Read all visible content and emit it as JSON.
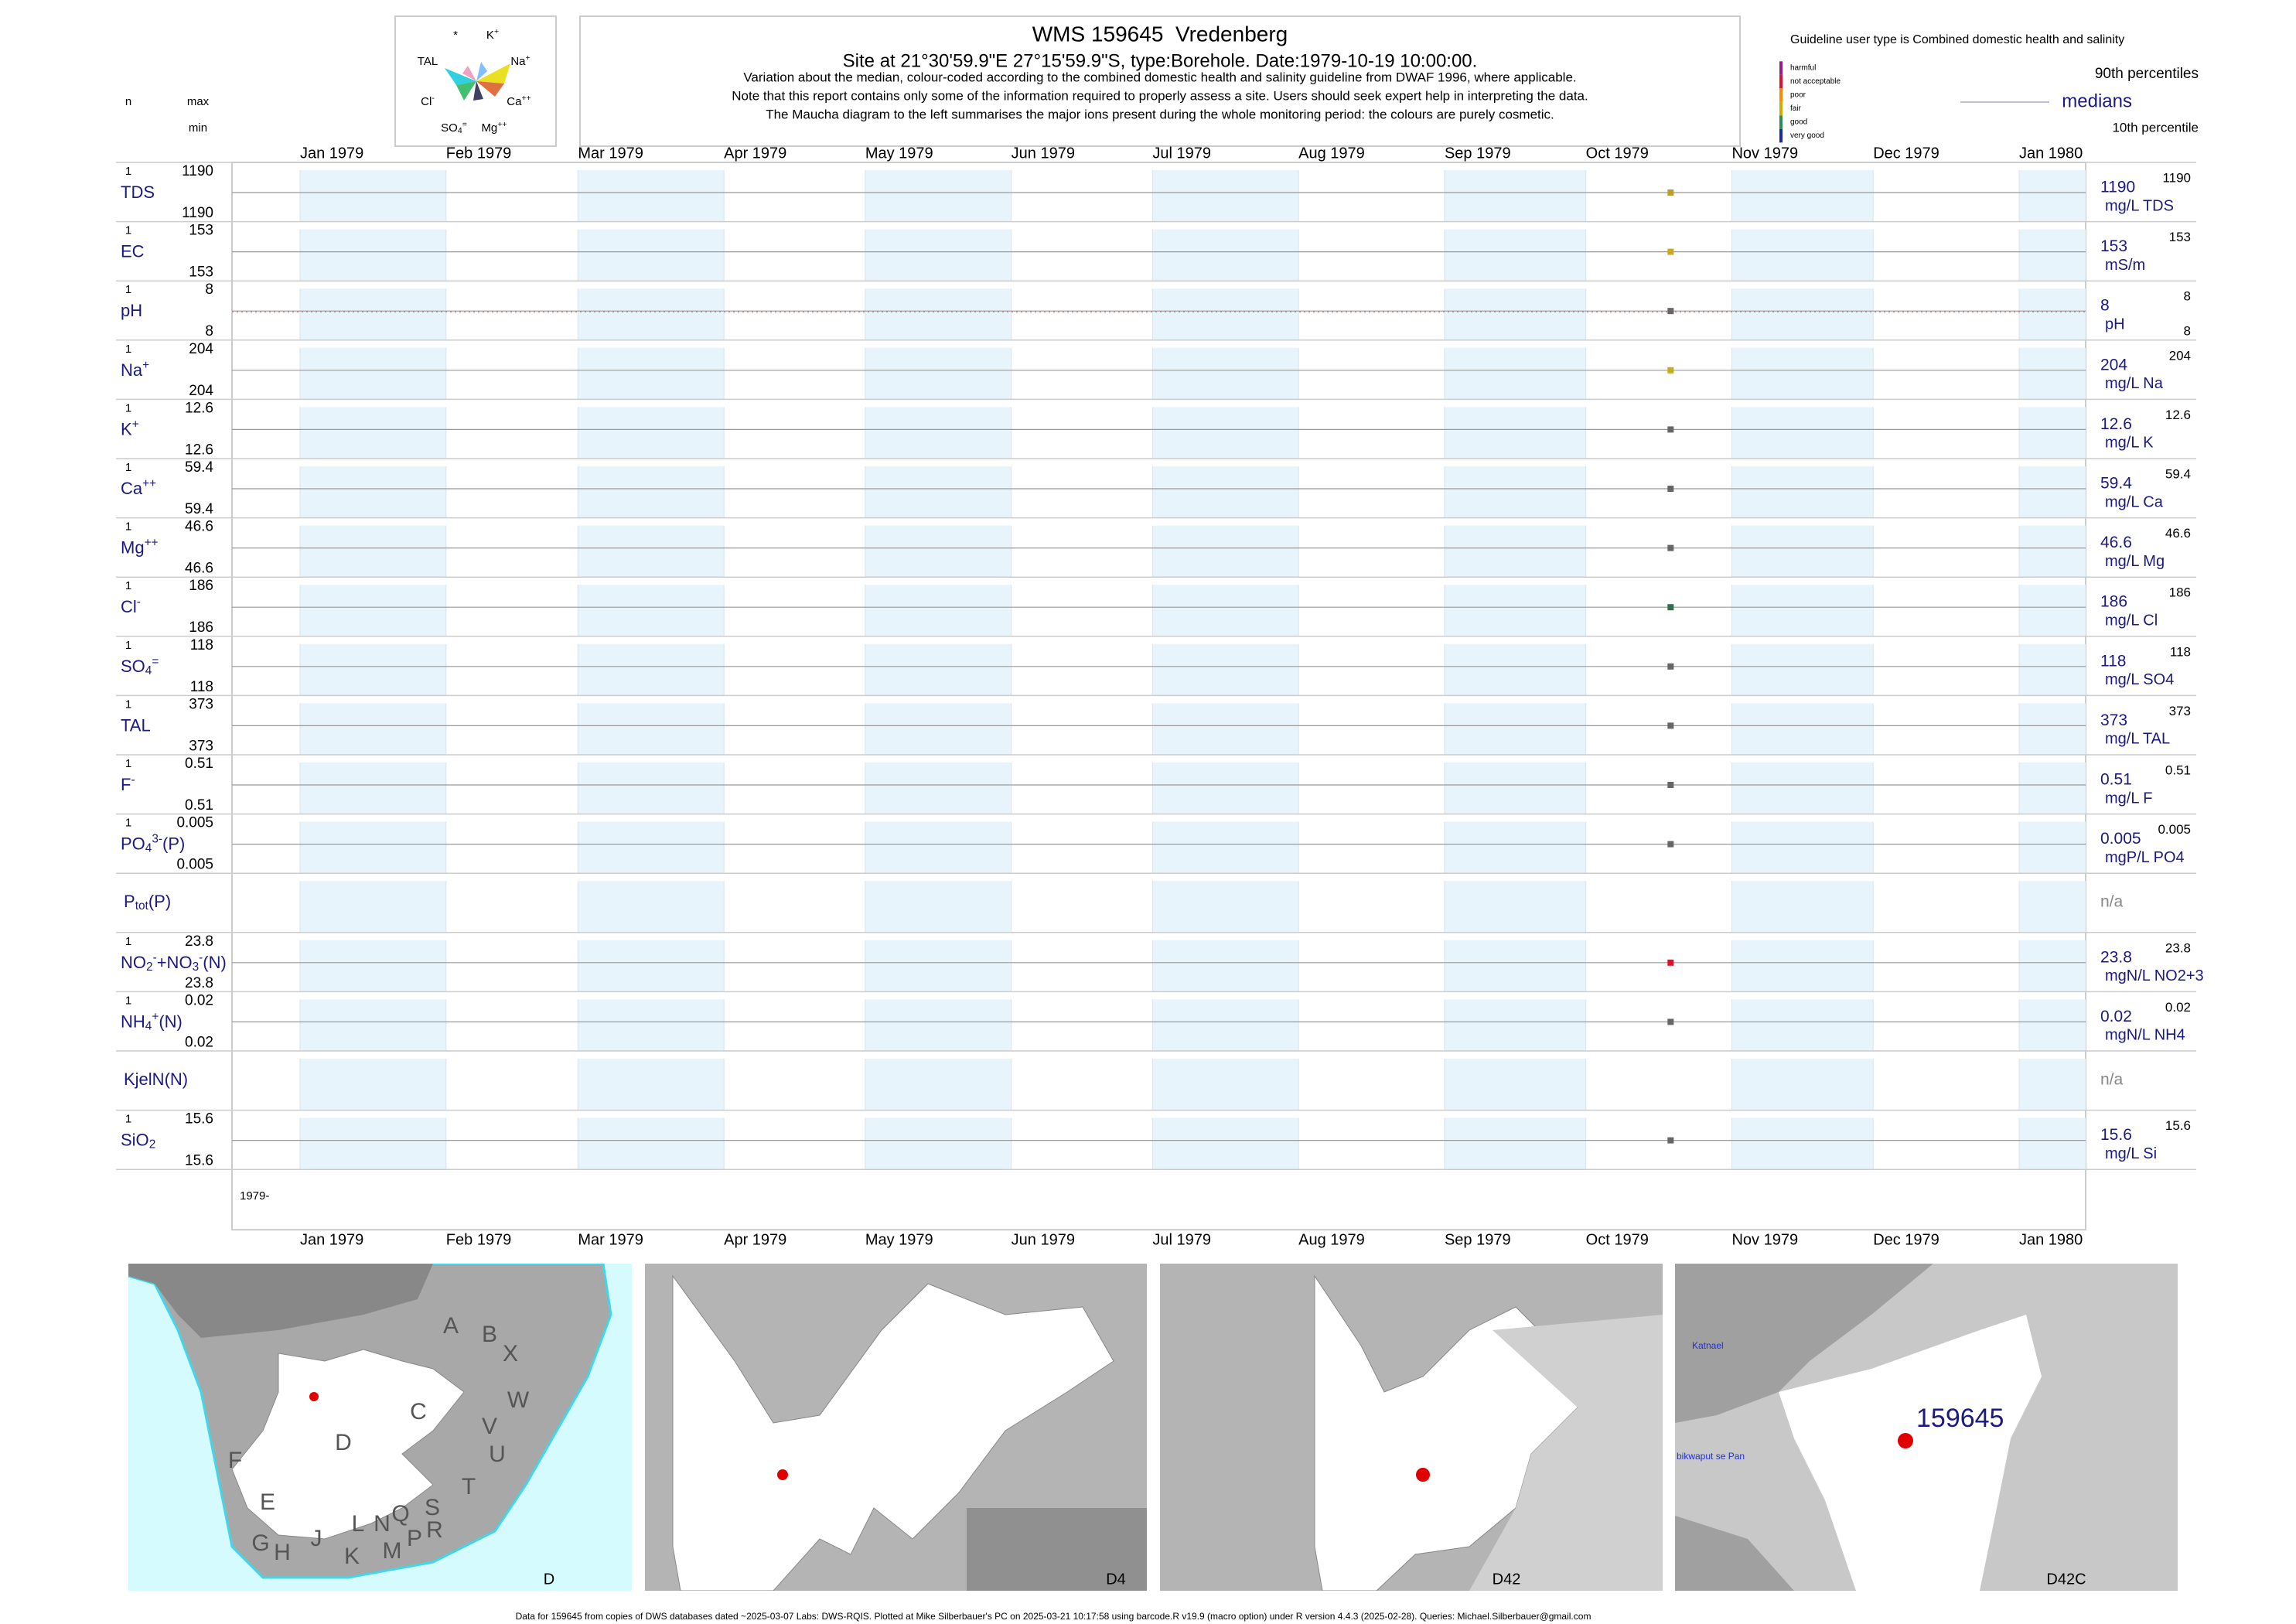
{
  "header": {
    "title": "WMS 159645  Vredenberg",
    "subtitle": "Site at 21°30'59.9\"E 27°15'59.9\"S, type:Borehole. Date:1979-10-19 10:00:00.",
    "notes": [
      "Variation about the median,  colour-coded according to the combined domestic health and salinity guideline from DWAF 1996, where applicable.",
      "Note that this report contains only some of the information required to properly assess a site. Users should seek expert help in interpreting the data.",
      "The Maucha diagram to the left summarises the major ions present during the whole monitoring period: the colours are purely cosmetic."
    ],
    "guideline": "Guideline user type is Combined domestic health and salinity"
  },
  "maucha": {
    "labels": [
      [
        {
          "text": "*"
        }
      ],
      [
        {
          "text": "K"
        },
        {
          "text": "+",
          "pos": "sup"
        }
      ],
      [
        {
          "text": "TAL"
        }
      ],
      [
        {
          "text": "Na"
        },
        {
          "text": "+",
          "pos": "sup"
        }
      ],
      [
        {
          "text": "Cl"
        },
        {
          "text": "-",
          "pos": "sup"
        }
      ],
      [
        {
          "text": "Ca"
        },
        {
          "text": "++",
          "pos": "sup"
        }
      ],
      [
        {
          "text": "SO"
        },
        {
          "text": "4",
          "pos": "sub"
        },
        {
          "text": "=",
          "pos": "sup"
        }
      ],
      [
        {
          "text": "Mg"
        },
        {
          "text": "++",
          "pos": "sup"
        }
      ]
    ]
  },
  "legend": {
    "classes": [
      {
        "name": "harmful",
        "color": "#9b1a8a"
      },
      {
        "name": "not acceptable",
        "color": "#e0102a"
      },
      {
        "name": "poor",
        "color": "#ff8a00"
      },
      {
        "name": "fair",
        "color": "#c9b000"
      },
      {
        "name": "good",
        "color": "#2e8b57"
      },
      {
        "name": "very good",
        "color": "#1a2aa0"
      }
    ],
    "p90": "90th percentiles",
    "median": "medians",
    "p10": "10th percentile",
    "n": "n",
    "max": "max",
    "min": "min"
  },
  "axis": {
    "months": [
      {
        "value": "1979-01",
        "label": "Jan 1979"
      },
      {
        "value": "1979-02",
        "label": "Feb 1979"
      },
      {
        "value": "1979-03",
        "label": "Mar 1979"
      },
      {
        "value": "1979-04",
        "label": "Apr 1979"
      },
      {
        "value": "1979-05",
        "label": "May 1979"
      },
      {
        "value": "1979-06",
        "label": "Jun 1979"
      },
      {
        "value": "1979-07",
        "label": "Jul 1979"
      },
      {
        "value": "1979-08",
        "label": "Aug 1979"
      },
      {
        "value": "1979-09",
        "label": "Sep 1979"
      },
      {
        "value": "1979-10",
        "label": "Oct 1979"
      },
      {
        "value": "1979-11",
        "label": "Nov 1979"
      },
      {
        "value": "1979-12",
        "label": "Dec 1979"
      },
      {
        "value": "1980-01",
        "label": "Jan 1980"
      }
    ],
    "start_label": "1979-"
  },
  "sample_date": "1979-10-19",
  "rows": [
    {
      "label": [
        {
          "text": "TDS"
        }
      ],
      "n": 1,
      "max": 1190,
      "min": 1190,
      "median": 1190,
      "unit": "mg/L TDS",
      "p90": 1190,
      "color": "#b8a030"
    },
    {
      "label": [
        {
          "text": "EC"
        }
      ],
      "n": 1,
      "max": 153,
      "min": 153,
      "median": 153,
      "unit": "mS/m",
      "p90": 153,
      "color": "#c8aa20"
    },
    {
      "label": [
        {
          "text": "pH"
        }
      ],
      "n": 1,
      "max": 8,
      "min": 8,
      "median": 8,
      "unit": "pH",
      "p90": 8,
      "p10": 8,
      "color": "#666666"
    },
    {
      "label": [
        {
          "text": "Na"
        },
        {
          "text": "+",
          "pos": "sup"
        }
      ],
      "n": 1,
      "max": 204,
      "min": 204,
      "median": 204,
      "unit": "mg/L Na",
      "p90": 204,
      "color": "#c8aa20"
    },
    {
      "label": [
        {
          "text": "K"
        },
        {
          "text": "+",
          "pos": "sup"
        }
      ],
      "n": 1,
      "max": 12.6,
      "min": 12.6,
      "median": 12.6,
      "unit": "mg/L K",
      "p90": 12.6,
      "color": "#666666"
    },
    {
      "label": [
        {
          "text": "Ca"
        },
        {
          "text": "++",
          "pos": "sup"
        }
      ],
      "n": 1,
      "max": 59.4,
      "min": 59.4,
      "median": 59.4,
      "unit": "mg/L Ca",
      "p90": 59.4,
      "color": "#666666"
    },
    {
      "label": [
        {
          "text": "Mg"
        },
        {
          "text": "++",
          "pos": "sup"
        }
      ],
      "n": 1,
      "max": 46.6,
      "min": 46.6,
      "median": 46.6,
      "unit": "mg/L Mg",
      "p90": 46.6,
      "color": "#666666"
    },
    {
      "label": [
        {
          "text": "Cl"
        },
        {
          "text": "-",
          "pos": "sup"
        }
      ],
      "n": 1,
      "max": 186,
      "min": 186,
      "median": 186,
      "unit": "mg/L Cl",
      "p90": 186,
      "color": "#2e6e4e"
    },
    {
      "label": [
        {
          "text": "SO"
        },
        {
          "text": "4",
          "pos": "sub"
        },
        {
          "text": "=",
          "pos": "sup"
        }
      ],
      "n": 1,
      "max": 118,
      "min": 118,
      "median": 118,
      "unit": "mg/L SO4",
      "p90": 118,
      "color": "#666666"
    },
    {
      "label": [
        {
          "text": "TAL"
        }
      ],
      "n": 1,
      "max": 373,
      "min": 373,
      "median": 373,
      "unit": "mg/L TAL",
      "p90": 373,
      "color": "#666666"
    },
    {
      "label": [
        {
          "text": "F"
        },
        {
          "text": "-",
          "pos": "sup"
        }
      ],
      "n": 1,
      "max": 0.51,
      "min": 0.51,
      "median": 0.51,
      "unit": "mg/L F",
      "p90": 0.51,
      "color": "#666666"
    },
    {
      "label": [
        {
          "text": "PO"
        },
        {
          "text": "4",
          "pos": "sub"
        },
        {
          "text": "3-",
          "pos": "sup"
        },
        {
          "text": "(P)"
        }
      ],
      "n": 1,
      "max": 0.005,
      "min": 0.005,
      "median": 0.005,
      "unit": "mgP/L PO4",
      "p90": 0.005,
      "color": "#666666"
    },
    {
      "label": [
        {
          "text": "P"
        },
        {
          "text": "tot",
          "pos": "sub"
        },
        {
          "text": "(P)"
        }
      ],
      "median_text": "n/a"
    },
    {
      "label": [
        {
          "text": "NO"
        },
        {
          "text": "2",
          "pos": "sub"
        },
        {
          "text": "-",
          "pos": "sup"
        },
        {
          "text": "+NO"
        },
        {
          "text": "3",
          "pos": "sub"
        },
        {
          "text": "-",
          "pos": "sup"
        },
        {
          "text": "(N)"
        }
      ],
      "n": 1,
      "max": 23.8,
      "min": 23.8,
      "median": 23.8,
      "unit": "mgN/L NO2+3",
      "p90": 23.8,
      "color": "#e0102a"
    },
    {
      "label": [
        {
          "text": "NH"
        },
        {
          "text": "4",
          "pos": "sub"
        },
        {
          "text": "+",
          "pos": "sup"
        },
        {
          "text": "(N)"
        }
      ],
      "n": 1,
      "max": 0.02,
      "min": 0.02,
      "median": 0.02,
      "unit": "mgN/L NH4",
      "p90": 0.02,
      "color": "#666666"
    },
    {
      "label": [
        {
          "text": "KjelN(N)"
        }
      ],
      "median_text": "n/a"
    },
    {
      "label": [
        {
          "text": "SiO"
        },
        {
          "text": "2",
          "pos": "sub"
        }
      ],
      "n": 1,
      "max": 15.6,
      "min": 15.6,
      "median": 15.6,
      "unit": "mg/L Si",
      "p90": 15.6,
      "color": "#666666"
    }
  ],
  "maps": [
    {
      "label": "D",
      "regions": [
        "A",
        "B",
        "X",
        "C",
        "W",
        "V",
        "U",
        "D",
        "T",
        "S",
        "R",
        "P",
        "M",
        "N",
        "Q",
        "L",
        "K",
        "J",
        "H",
        "G",
        "E",
        "F"
      ]
    },
    {
      "label": "D4"
    },
    {
      "label": "D42"
    },
    {
      "label": "D42C",
      "site": "159645",
      "places": [
        "Katnael",
        "bikwaput se Pan"
      ]
    }
  ],
  "footer": "Data for 159645 from copies of DWS databases dated ~2025-03-07 Labs: DWS-RQIS. Plotted at Mike Silberbauer's PC on 2025-03-21 10:17:58 using barcode.R v19.9 (macro option) under R version 4.4.3 (2025-02-28). Queries: Michael.Silberbauer@gmail.com"
}
